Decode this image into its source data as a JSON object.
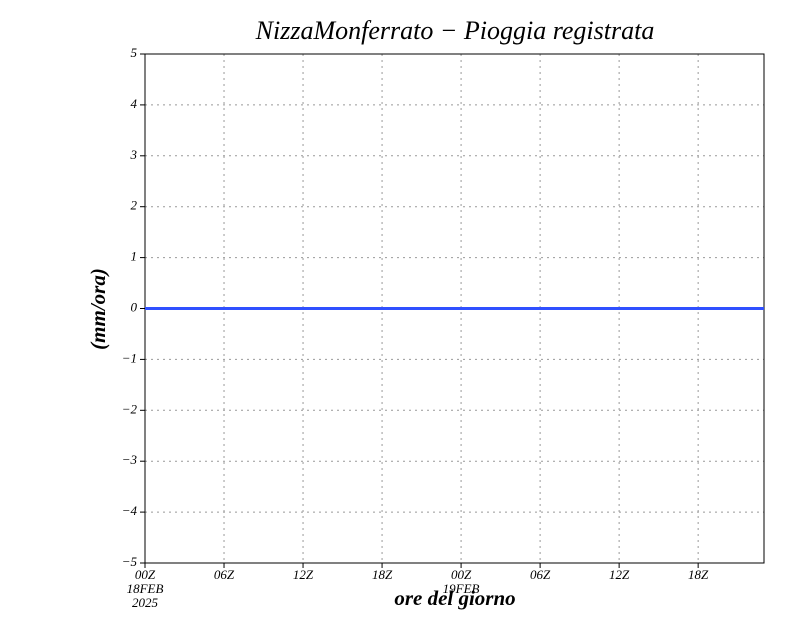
{
  "chart_data": {
    "type": "line",
    "title": "NizzaMonferrato − Pioggia registrata",
    "y_label": "(mm/ora)",
    "x_label": "ore del giorno",
    "categories": [
      "00Z",
      null,
      null,
      null,
      null,
      null,
      "06Z",
      null,
      null,
      null,
      null,
      null,
      "12Z",
      null,
      null,
      null,
      null,
      null,
      "18Z",
      null,
      null,
      null,
      null,
      null,
      "00Z",
      null,
      null,
      null,
      null,
      null,
      "06Z",
      null,
      null,
      null,
      null,
      null,
      "12Z",
      null,
      null,
      null,
      null,
      null,
      "18Z",
      null,
      null,
      null,
      null,
      null
    ],
    "date_labels": [
      "18FEB",
      null,
      null,
      null,
      null,
      null,
      null,
      null,
      null,
      null,
      null,
      null,
      null,
      null,
      null,
      null,
      null,
      null,
      null,
      null,
      null,
      null,
      null,
      null,
      "19FEB",
      null,
      null,
      null,
      null,
      null,
      null,
      null,
      null,
      null,
      null,
      null,
      null,
      null,
      null,
      null,
      null,
      null,
      null,
      null,
      null,
      null,
      null,
      null
    ],
    "year_labels": [
      "2025",
      null,
      null,
      null,
      null,
      null,
      null,
      null,
      null,
      null,
      null,
      null,
      null,
      null,
      null,
      null,
      null,
      null,
      null,
      null,
      null,
      null,
      null,
      null,
      null,
      null,
      null,
      null,
      null,
      null,
      null,
      null,
      null,
      null,
      null,
      null,
      null,
      null,
      null,
      null,
      null,
      null,
      null,
      null,
      null,
      null,
      null,
      null
    ],
    "series": [
      {
        "color": "#3050ff",
        "values": [
          0,
          0,
          0,
          0,
          0,
          0,
          0,
          0,
          0,
          0,
          0,
          0,
          0,
          0,
          0,
          0,
          0,
          0,
          0,
          0,
          0,
          0,
          0,
          0,
          0,
          0,
          0,
          0,
          0,
          0,
          0,
          0,
          0,
          0,
          0,
          0,
          0,
          0,
          0,
          0,
          0,
          0,
          0,
          0,
          0,
          0,
          0,
          0
        ]
      }
    ],
    "ylim": [
      -5,
      5
    ],
    "yticks": [
      {
        "value": -5,
        "label": "−5"
      },
      {
        "value": -4,
        "label": "−4"
      },
      {
        "value": -3,
        "label": "−3"
      },
      {
        "value": -2,
        "label": "−2"
      },
      {
        "value": -1,
        "label": "−1"
      },
      0,
      1,
      2,
      3,
      4,
      5
    ],
    "grid": true
  }
}
